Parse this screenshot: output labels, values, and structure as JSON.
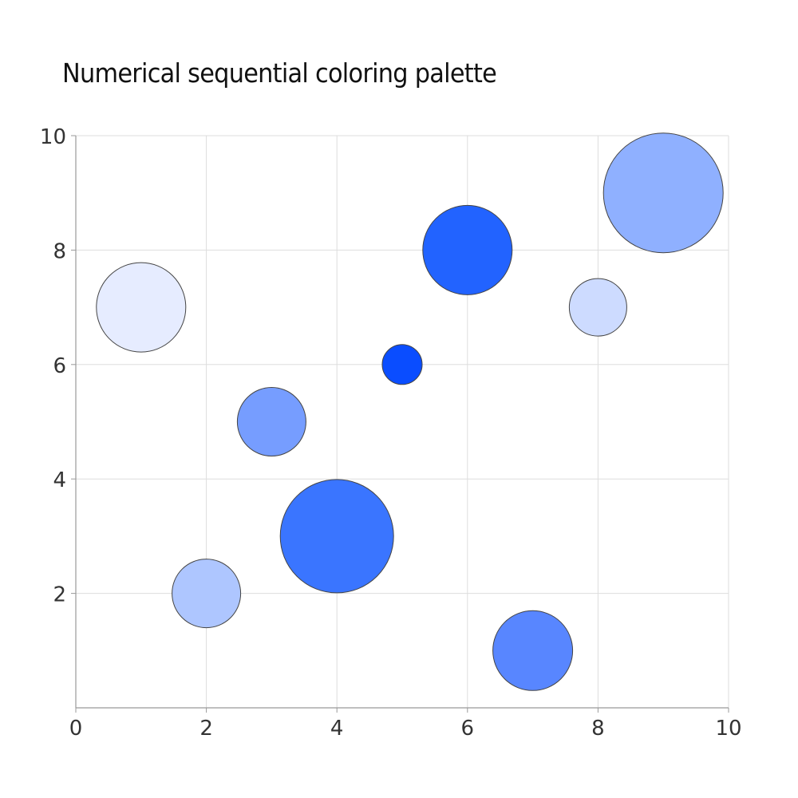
{
  "chart_data": {
    "type": "scatter",
    "subtype": "bubble",
    "title": "Numerical sequential coloring palette",
    "xlabel": "",
    "ylabel": "",
    "xlim": [
      0,
      10
    ],
    "ylim": [
      0,
      10
    ],
    "x_ticks": [
      0,
      2,
      4,
      6,
      8,
      10
    ],
    "y_ticks": [
      2,
      4,
      6,
      8,
      10
    ],
    "grid": true,
    "legend": null,
    "points": [
      {
        "x": 1,
        "y": 7,
        "radius_px": 56,
        "color": "#e6ecff"
      },
      {
        "x": 2,
        "y": 2,
        "radius_px": 43,
        "color": "#aec6ff"
      },
      {
        "x": 3,
        "y": 5,
        "radius_px": 43,
        "color": "#769dff"
      },
      {
        "x": 4,
        "y": 3,
        "radius_px": 71,
        "color": "#3a75ff"
      },
      {
        "x": 5,
        "y": 6,
        "radius_px": 25,
        "color": "#0a4dff"
      },
      {
        "x": 6,
        "y": 8,
        "radius_px": 56,
        "color": "#2263ff"
      },
      {
        "x": 7,
        "y": 1,
        "radius_px": 50,
        "color": "#5886ff"
      },
      {
        "x": 8,
        "y": 7,
        "radius_px": 36,
        "color": "#cddbff"
      },
      {
        "x": 9,
        "y": 9,
        "radius_px": 75,
        "color": "#8fb0ff"
      }
    ]
  },
  "style": {
    "axis_color": "#999999",
    "grid_color": "#dddddd",
    "bubble_stroke": "#444444"
  }
}
